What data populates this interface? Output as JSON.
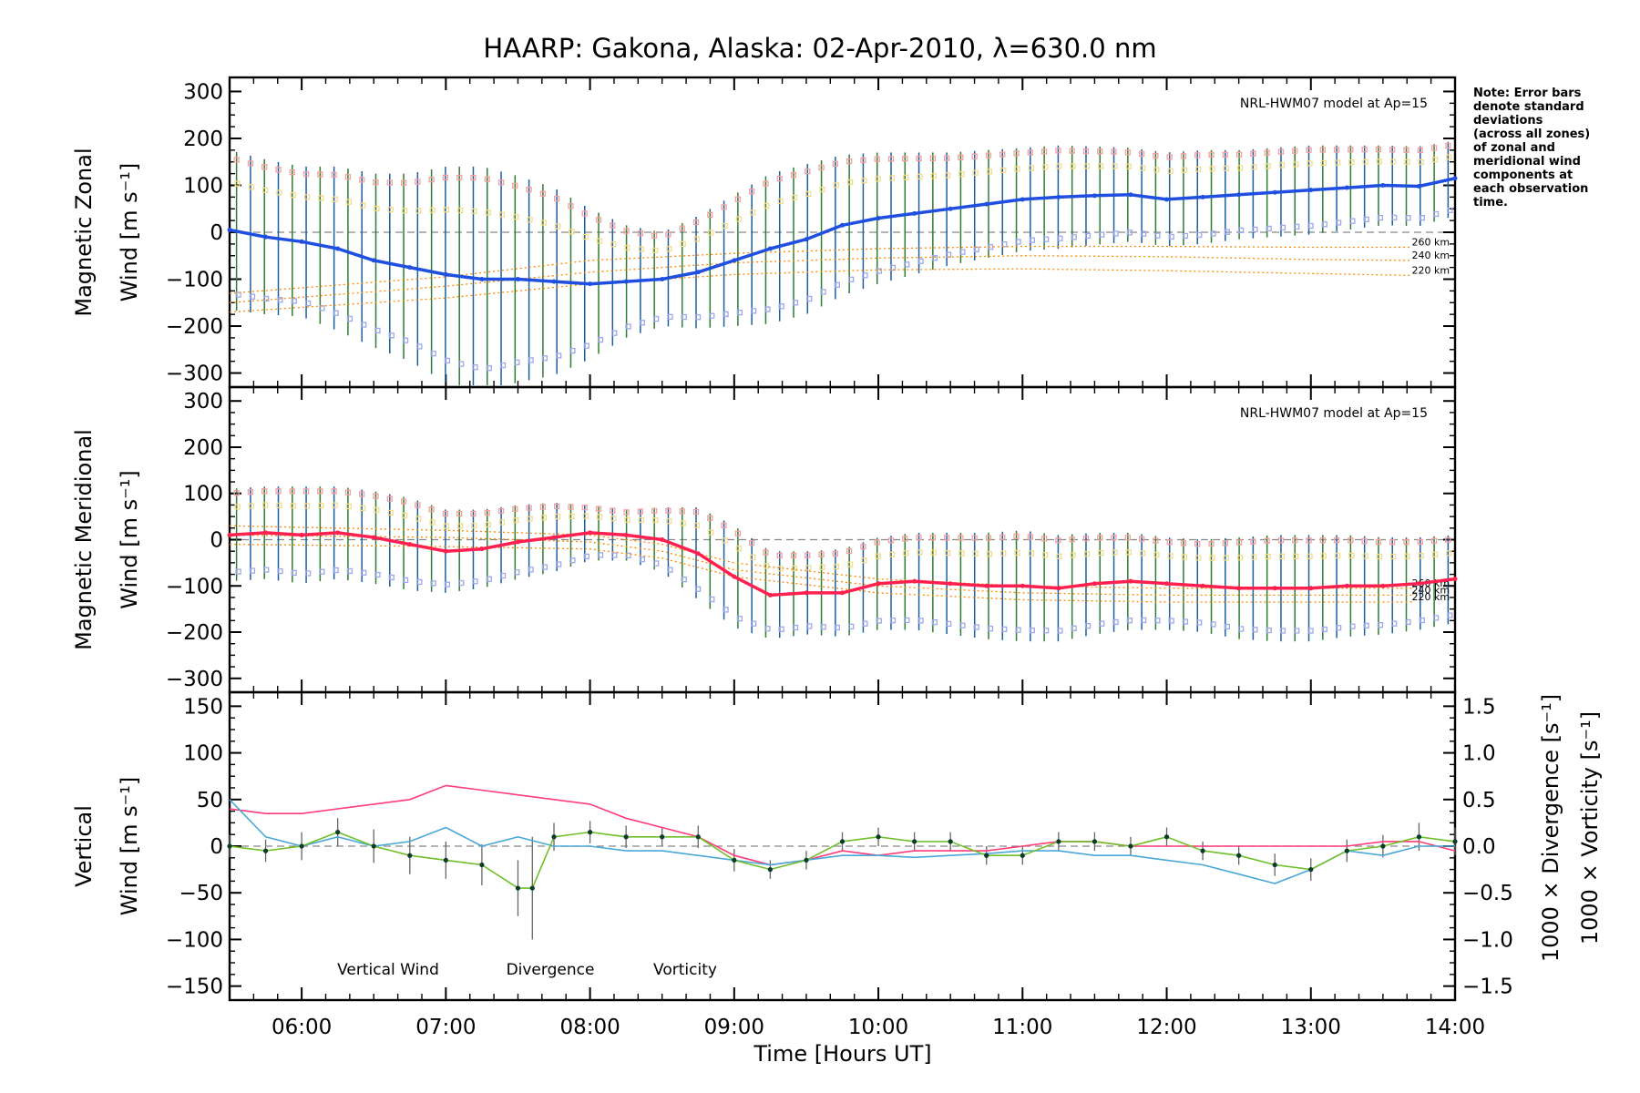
{
  "figure": {
    "title": "HAARP: Gakona,  Alaska: 02-Apr-2010, λ=630.0 nm",
    "note": [
      "Note: Error bars",
      "denote standard",
      "deviations",
      "(across all zones)",
      "of zonal and",
      "meridional wind",
      "components at",
      "each observation",
      "time."
    ],
    "xlabel": "Time [Hours UT]"
  },
  "colors": {
    "zonal": "#1f4fe0",
    "meridional": "#ff2050",
    "errbar_a": "#1b5fa0",
    "errbar_b": "#2e7d32",
    "vertical": "#6fbf2a",
    "divergence": "#4aa8d8",
    "vorticity": "#ff3c78",
    "model": "#ff8a00",
    "zone_pink": "#f5a0a0",
    "zone_yellow": "#f6dc8c",
    "zone_blue": "#9fa8ea"
  },
  "chart_data": [
    {
      "type": "line",
      "panel": "zonal",
      "ylabel": [
        "Magnetic Zonal",
        "Wind [m s⁻¹]"
      ],
      "xlim": [
        5.5,
        14.0
      ],
      "ylim": [
        -330,
        330
      ],
      "xticks": [
        "06:00",
        "07:00",
        "08:00",
        "09:00",
        "10:00",
        "11:00",
        "12:00",
        "13:00",
        "14:00"
      ],
      "yticks": [
        "300",
        "200",
        "100",
        "0",
        "−100",
        "−200",
        "−300"
      ],
      "model_label": "NRL-HWM07 model at Ap=15",
      "model_lines": [
        {
          "label": "260 km",
          "x": [
            5.5,
            7,
            8,
            9,
            10,
            11,
            12,
            13,
            13.7
          ],
          "y": [
            -130,
            -95,
            -60,
            -45,
            -35,
            -30,
            -30,
            -32,
            -32
          ]
        },
        {
          "label": "240 km",
          "x": [
            5.5,
            7,
            8,
            9,
            10,
            11,
            12,
            13,
            13.7
          ],
          "y": [
            -150,
            -115,
            -85,
            -65,
            -55,
            -50,
            -52,
            -58,
            -60
          ]
        },
        {
          "label": "220 km",
          "x": [
            5.5,
            7,
            8,
            9,
            10,
            11,
            12,
            13,
            13.7
          ],
          "y": [
            -170,
            -140,
            -110,
            -90,
            -80,
            -78,
            -82,
            -88,
            -92
          ]
        }
      ],
      "series": [
        {
          "x": [
            5.5,
            5.75,
            6.0,
            6.25,
            6.5,
            6.75,
            7.0,
            7.25,
            7.5,
            7.75,
            8.0,
            8.25,
            8.5,
            8.75,
            9.0,
            9.25,
            9.5,
            9.75,
            10.0,
            10.25,
            10.5,
            10.75,
            11.0,
            11.25,
            11.5,
            11.75,
            12.0,
            12.25,
            12.5,
            12.75,
            13.0,
            13.25,
            13.5,
            13.75,
            14.0
          ],
          "y": [
            5,
            -10,
            -20,
            -35,
            -60,
            -75,
            -90,
            -100,
            -100,
            -105,
            -110,
            -105,
            -100,
            -85,
            -60,
            -35,
            -15,
            15,
            30,
            40,
            50,
            60,
            70,
            75,
            78,
            80,
            70,
            75,
            80,
            85,
            90,
            95,
            100,
            98,
            115
          ],
          "err": [
            170,
            165,
            160,
            175,
            185,
            200,
            230,
            240,
            220,
            200,
            160,
            120,
            100,
            120,
            140,
            160,
            160,
            150,
            140,
            130,
            120,
            115,
            110,
            110,
            105,
            100,
            100,
            100,
            95,
            95,
            95,
            90,
            85,
            85,
            80
          ]
        }
      ]
    },
    {
      "type": "line",
      "panel": "meridional",
      "ylabel": [
        "Magnetic Meridional",
        "Wind [m s⁻¹]"
      ],
      "xlim": [
        5.5,
        14.0
      ],
      "ylim": [
        -330,
        330
      ],
      "xticks": [
        "06:00",
        "07:00",
        "08:00",
        "09:00",
        "10:00",
        "11:00",
        "12:00",
        "13:00",
        "14:00"
      ],
      "yticks": [
        "300",
        "200",
        "100",
        "0",
        "−100",
        "−200",
        "−300"
      ],
      "model_label": "NRL-HWM07 model at Ap=15",
      "model_lines": [
        {
          "label": "260 km",
          "x": [
            5.5,
            7,
            8,
            8.5,
            9,
            10,
            11,
            12,
            13,
            13.7
          ],
          "y": [
            30,
            20,
            10,
            -10,
            -50,
            -85,
            -100,
            -105,
            -105,
            -105
          ]
        },
        {
          "label": "240 km",
          "x": [
            5.5,
            7,
            8,
            8.5,
            9,
            10,
            11,
            12,
            13,
            13.7
          ],
          "y": [
            10,
            5,
            -5,
            -25,
            -65,
            -100,
            -115,
            -120,
            -120,
            -120
          ]
        },
        {
          "label": "220 km",
          "x": [
            5.5,
            7,
            8,
            8.5,
            9,
            10,
            11,
            12,
            13,
            13.7
          ],
          "y": [
            -10,
            -15,
            -20,
            -40,
            -80,
            -115,
            -130,
            -135,
            -135,
            -135
          ]
        }
      ],
      "series": [
        {
          "x": [
            5.5,
            5.75,
            6.0,
            6.25,
            6.5,
            6.75,
            7.0,
            7.25,
            7.5,
            7.75,
            8.0,
            8.25,
            8.5,
            8.75,
            9.0,
            9.25,
            9.5,
            9.75,
            10.0,
            10.25,
            10.5,
            10.75,
            11.0,
            11.25,
            11.5,
            11.75,
            12.0,
            12.25,
            12.5,
            12.75,
            13.0,
            13.25,
            13.5,
            13.75,
            14.0
          ],
          "y": [
            10,
            15,
            10,
            15,
            5,
            -10,
            -25,
            -20,
            -5,
            5,
            15,
            10,
            0,
            -30,
            -80,
            -120,
            -115,
            -115,
            -95,
            -90,
            -95,
            -100,
            -100,
            -105,
            -95,
            -90,
            -95,
            -100,
            -105,
            -105,
            -105,
            -100,
            -100,
            -95,
            -85
          ],
          "err": [
            100,
            100,
            105,
            100,
            100,
            100,
            90,
            85,
            80,
            75,
            60,
            55,
            70,
            100,
            110,
            95,
            90,
            95,
            100,
            105,
            110,
            115,
            120,
            115,
            110,
            105,
            100,
            100,
            110,
            115,
            115,
            110,
            105,
            100,
            95
          ]
        }
      ]
    },
    {
      "type": "line",
      "panel": "vertical",
      "ylabel_left": [
        "Vertical",
        "Wind [m s⁻¹]"
      ],
      "ylabel_right": [
        "1000 × Divergence [s⁻¹]",
        "1000 × Vorticity [s⁻¹]"
      ],
      "xlim": [
        5.5,
        14.0
      ],
      "ylim": [
        -165,
        165
      ],
      "ylim_right": [
        -1.65,
        1.65
      ],
      "xticks": [
        "06:00",
        "07:00",
        "08:00",
        "09:00",
        "10:00",
        "11:00",
        "12:00",
        "13:00",
        "14:00"
      ],
      "yticks": [
        "150",
        "100",
        "50",
        "0",
        "−50",
        "−100",
        "−150"
      ],
      "yticks_right": [
        "1.5",
        "1.0",
        "0.5",
        "0.0",
        "−0.5",
        "−1.0",
        "−1.5"
      ],
      "legend": [
        "Vertical Wind",
        "Divergence",
        "Vorticity"
      ],
      "series": [
        {
          "name": "Vertical Wind",
          "x": [
            5.5,
            5.75,
            6.0,
            6.25,
            6.5,
            6.75,
            7.0,
            7.25,
            7.5,
            7.6,
            7.75,
            8.0,
            8.25,
            8.5,
            8.75,
            9.0,
            9.25,
            9.5,
            9.75,
            10.0,
            10.25,
            10.5,
            10.75,
            11.0,
            11.25,
            11.5,
            11.75,
            12.0,
            12.25,
            12.5,
            12.75,
            13.0,
            13.25,
            13.5,
            13.75,
            14.0
          ],
          "y": [
            0,
            -5,
            0,
            15,
            0,
            -10,
            -15,
            -20,
            -45,
            -45,
            10,
            15,
            10,
            10,
            10,
            -15,
            -25,
            -15,
            5,
            10,
            5,
            5,
            -10,
            -10,
            5,
            5,
            0,
            10,
            -5,
            -10,
            -20,
            -25,
            -5,
            0,
            10,
            5
          ],
          "err": [
            12,
            12,
            15,
            15,
            18,
            20,
            20,
            22,
            30,
            55,
            15,
            12,
            12,
            10,
            12,
            12,
            10,
            10,
            10,
            10,
            10,
            10,
            10,
            10,
            10,
            10,
            10,
            10,
            10,
            10,
            12,
            12,
            12,
            12,
            15,
            15
          ]
        },
        {
          "name": "Divergence",
          "x": [
            5.5,
            5.75,
            6.0,
            6.25,
            6.5,
            6.75,
            7.0,
            7.25,
            7.5,
            7.75,
            8.0,
            8.25,
            8.5,
            8.75,
            9.0,
            9.25,
            9.5,
            9.75,
            10.0,
            10.25,
            10.5,
            10.75,
            11.0,
            11.25,
            11.5,
            11.75,
            12.0,
            12.25,
            12.5,
            12.75,
            13.0,
            13.25,
            13.5,
            13.75,
            14.0
          ],
          "y": [
            0.5,
            0.1,
            0.0,
            0.1,
            0.0,
            0.05,
            0.2,
            0.0,
            0.1,
            0.0,
            0.0,
            -0.05,
            -0.05,
            -0.1,
            -0.15,
            -0.2,
            -0.15,
            -0.1,
            -0.1,
            -0.12,
            -0.1,
            -0.08,
            -0.05,
            -0.05,
            -0.1,
            -0.1,
            -0.15,
            -0.2,
            -0.3,
            -0.4,
            -0.25,
            -0.05,
            -0.1,
            0.0,
            0.0
          ]
        },
        {
          "name": "Vorticity",
          "x": [
            5.5,
            5.75,
            6.0,
            6.25,
            6.5,
            6.75,
            7.0,
            7.25,
            7.5,
            7.75,
            8.0,
            8.25,
            8.5,
            8.75,
            9.0,
            9.25,
            9.5,
            9.75,
            10.0,
            10.25,
            10.5,
            10.75,
            11.0,
            11.25,
            11.5,
            11.75,
            12.0,
            12.25,
            12.5,
            12.75,
            13.0,
            13.25,
            13.5,
            13.75,
            14.0
          ],
          "y": [
            0.4,
            0.35,
            0.35,
            0.4,
            0.45,
            0.5,
            0.65,
            0.6,
            0.55,
            0.5,
            0.45,
            0.3,
            0.2,
            0.1,
            -0.1,
            -0.2,
            -0.15,
            -0.05,
            -0.1,
            -0.05,
            -0.05,
            -0.05,
            0.0,
            0.05,
            0.05,
            0.0,
            0.0,
            0.0,
            0.0,
            0.0,
            0.0,
            0.0,
            0.05,
            0.05,
            -0.05
          ]
        }
      ]
    }
  ]
}
